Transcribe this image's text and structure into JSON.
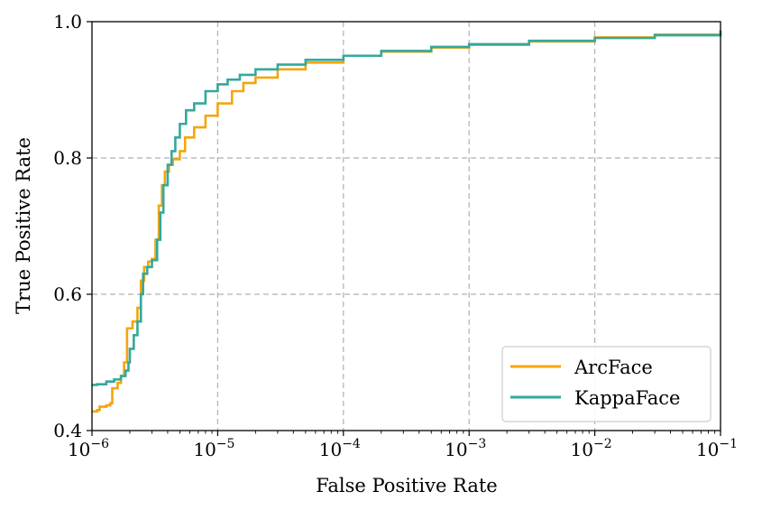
{
  "chart_data": {
    "type": "line",
    "title": "",
    "xlabel": "False Positive Rate",
    "ylabel": "True Positive Rate",
    "xscale": "log",
    "xlim": [
      1e-06,
      0.1
    ],
    "ylim": [
      0.4,
      1.0
    ],
    "grid": true,
    "legend_position": "lower-right",
    "x_ticks": [
      {
        "base": "10",
        "exp": "−6",
        "value": 1e-06
      },
      {
        "base": "10",
        "exp": "−5",
        "value": 1e-05
      },
      {
        "base": "10",
        "exp": "−4",
        "value": 0.0001
      },
      {
        "base": "10",
        "exp": "−3",
        "value": 0.001
      },
      {
        "base": "10",
        "exp": "−2",
        "value": 0.01
      },
      {
        "base": "10",
        "exp": "−1",
        "value": 0.1
      }
    ],
    "y_ticks": [
      {
        "label": "0.4",
        "value": 0.4
      },
      {
        "label": "0.6",
        "value": 0.6
      },
      {
        "label": "0.8",
        "value": 0.8
      },
      {
        "label": "1.0",
        "value": 1.0
      }
    ],
    "series": [
      {
        "name": "ArcFace",
        "color": "#F5A50D",
        "points": [
          [
            1e-06,
            0.428
          ],
          [
            1.1e-06,
            0.43
          ],
          [
            1.15e-06,
            0.435
          ],
          [
            1.3e-06,
            0.437
          ],
          [
            1.4e-06,
            0.44
          ],
          [
            1.45e-06,
            0.462
          ],
          [
            1.6e-06,
            0.47
          ],
          [
            1.7e-06,
            0.48
          ],
          [
            1.8e-06,
            0.5
          ],
          [
            1.9e-06,
            0.55
          ],
          [
            2.1e-06,
            0.56
          ],
          [
            2.3e-06,
            0.58
          ],
          [
            2.45e-06,
            0.62
          ],
          [
            2.6e-06,
            0.64
          ],
          [
            2.8e-06,
            0.648
          ],
          [
            3e-06,
            0.652
          ],
          [
            3.2e-06,
            0.68
          ],
          [
            3.4e-06,
            0.73
          ],
          [
            3.6e-06,
            0.76
          ],
          [
            3.8e-06,
            0.78
          ],
          [
            4.1e-06,
            0.79
          ],
          [
            4.4e-06,
            0.798
          ],
          [
            5e-06,
            0.81
          ],
          [
            5.5e-06,
            0.83
          ],
          [
            6.5e-06,
            0.845
          ],
          [
            8e-06,
            0.862
          ],
          [
            1e-05,
            0.88
          ],
          [
            1.3e-05,
            0.898
          ],
          [
            1.6e-05,
            0.91
          ],
          [
            2e-05,
            0.918
          ],
          [
            3e-05,
            0.93
          ],
          [
            5e-05,
            0.94
          ],
          [
            0.0001,
            0.95
          ],
          [
            0.0002,
            0.956
          ],
          [
            0.0005,
            0.962
          ],
          [
            0.001,
            0.966
          ],
          [
            0.003,
            0.971
          ],
          [
            0.01,
            0.977
          ],
          [
            0.03,
            0.981
          ],
          [
            0.1,
            0.986
          ]
        ]
      },
      {
        "name": "KappaFace",
        "color": "#33A99C",
        "points": [
          [
            1e-06,
            0.467
          ],
          [
            1.1e-06,
            0.468
          ],
          [
            1.3e-06,
            0.472
          ],
          [
            1.5e-06,
            0.475
          ],
          [
            1.7e-06,
            0.48
          ],
          [
            1.85e-06,
            0.488
          ],
          [
            1.95e-06,
            0.5
          ],
          [
            2e-06,
            0.52
          ],
          [
            2.15e-06,
            0.54
          ],
          [
            2.3e-06,
            0.56
          ],
          [
            2.45e-06,
            0.6
          ],
          [
            2.55e-06,
            0.63
          ],
          [
            2.75e-06,
            0.64
          ],
          [
            3e-06,
            0.65
          ],
          [
            3.3e-06,
            0.68
          ],
          [
            3.5e-06,
            0.72
          ],
          [
            3.7e-06,
            0.76
          ],
          [
            4e-06,
            0.79
          ],
          [
            4.3e-06,
            0.81
          ],
          [
            4.6e-06,
            0.83
          ],
          [
            5e-06,
            0.85
          ],
          [
            5.6e-06,
            0.87
          ],
          [
            6.5e-06,
            0.88
          ],
          [
            8e-06,
            0.898
          ],
          [
            1e-05,
            0.908
          ],
          [
            1.2e-05,
            0.915
          ],
          [
            1.5e-05,
            0.922
          ],
          [
            2e-05,
            0.93
          ],
          [
            3e-05,
            0.937
          ],
          [
            5e-05,
            0.944
          ],
          [
            0.0001,
            0.95
          ],
          [
            0.0002,
            0.957
          ],
          [
            0.0005,
            0.963
          ],
          [
            0.001,
            0.967
          ],
          [
            0.003,
            0.972
          ],
          [
            0.01,
            0.976
          ],
          [
            0.03,
            0.98
          ],
          [
            0.1,
            0.987
          ]
        ]
      }
    ]
  }
}
